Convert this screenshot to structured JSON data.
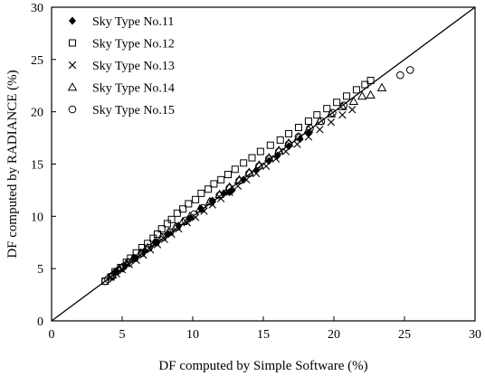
{
  "chart_data": {
    "type": "scatter",
    "xlabel": "DF computed by Simple Software (%)",
    "ylabel": "DF computed by RADIANCE (%)",
    "xlim": [
      0,
      30
    ],
    "ylim": [
      0,
      30
    ],
    "xticks": [
      "0",
      "5",
      "10",
      "15",
      "20",
      "25",
      "30"
    ],
    "yticks": [
      "0",
      "5",
      "10",
      "15",
      "20",
      "25",
      "30"
    ],
    "grid": false,
    "legend_position": "top-left",
    "reference_line": {
      "from": [
        0,
        0
      ],
      "to": [
        30,
        30
      ]
    },
    "series": [
      {
        "name": "Sky Type No.11",
        "marker": "filled-diamond",
        "points": [
          [
            4.5,
            4.7
          ],
          [
            5.2,
            5.3
          ],
          [
            5.9,
            6.0
          ],
          [
            6.6,
            6.7
          ],
          [
            7.4,
            7.5
          ],
          [
            8.2,
            8.3
          ],
          [
            9.0,
            9.1
          ],
          [
            9.8,
            9.8
          ],
          [
            10.6,
            10.7
          ],
          [
            11.4,
            11.5
          ],
          [
            12.2,
            12.2
          ],
          [
            12.6,
            12.3
          ],
          [
            12.8,
            12.5
          ],
          [
            13.6,
            13.5
          ],
          [
            14.5,
            14.4
          ],
          [
            15.4,
            15.3
          ],
          [
            16.0,
            15.8
          ],
          [
            16.8,
            16.7
          ],
          [
            17.6,
            17.4
          ],
          [
            18.2,
            18.0
          ]
        ]
      },
      {
        "name": "Sky Type No.12",
        "marker": "open-square",
        "points": [
          [
            3.8,
            3.8
          ],
          [
            4.2,
            4.2
          ],
          [
            4.5,
            4.7
          ],
          [
            4.9,
            5.1
          ],
          [
            5.3,
            5.6
          ],
          [
            5.6,
            6.0
          ],
          [
            6.0,
            6.5
          ],
          [
            6.4,
            7.0
          ],
          [
            6.8,
            7.4
          ],
          [
            7.2,
            7.9
          ],
          [
            7.5,
            8.3
          ],
          [
            7.8,
            8.8
          ],
          [
            8.2,
            9.3
          ],
          [
            8.5,
            9.7
          ],
          [
            8.9,
            10.3
          ],
          [
            9.3,
            10.7
          ],
          [
            9.7,
            11.2
          ],
          [
            10.2,
            11.6
          ],
          [
            10.6,
            12.2
          ],
          [
            11.1,
            12.6
          ],
          [
            11.5,
            13.1
          ],
          [
            12.0,
            13.5
          ],
          [
            12.5,
            14.0
          ],
          [
            13.0,
            14.5
          ],
          [
            13.6,
            15.1
          ],
          [
            14.2,
            15.6
          ],
          [
            14.8,
            16.2
          ],
          [
            15.5,
            16.8
          ],
          [
            16.2,
            17.3
          ],
          [
            16.8,
            17.9
          ],
          [
            17.5,
            18.5
          ],
          [
            18.2,
            19.1
          ],
          [
            18.8,
            19.7
          ],
          [
            19.5,
            20.3
          ],
          [
            20.2,
            20.9
          ],
          [
            20.9,
            21.5
          ],
          [
            21.6,
            22.1
          ],
          [
            22.2,
            22.6
          ],
          [
            22.6,
            23.0
          ]
        ]
      },
      {
        "name": "Sky Type No.13",
        "marker": "x",
        "points": [
          [
            4.2,
            4.2
          ],
          [
            4.6,
            4.5
          ],
          [
            5.0,
            4.9
          ],
          [
            5.5,
            5.4
          ],
          [
            6.0,
            5.8
          ],
          [
            6.5,
            6.3
          ],
          [
            7.0,
            6.8
          ],
          [
            7.5,
            7.3
          ],
          [
            8.0,
            7.8
          ],
          [
            8.5,
            8.3
          ],
          [
            9.0,
            8.8
          ],
          [
            9.6,
            9.4
          ],
          [
            10.2,
            9.9
          ],
          [
            10.8,
            10.5
          ],
          [
            11.4,
            11.1
          ],
          [
            12.0,
            11.7
          ],
          [
            12.6,
            12.3
          ],
          [
            13.2,
            12.9
          ],
          [
            13.8,
            13.5
          ],
          [
            14.5,
            14.1
          ],
          [
            15.2,
            14.8
          ],
          [
            15.9,
            15.5
          ],
          [
            16.6,
            16.2
          ],
          [
            17.4,
            16.9
          ],
          [
            18.2,
            17.6
          ],
          [
            19.0,
            18.3
          ],
          [
            19.8,
            19.0
          ],
          [
            20.6,
            19.7
          ],
          [
            21.3,
            20.2
          ]
        ]
      },
      {
        "name": "Sky Type No.14",
        "marker": "open-triangle",
        "points": [
          [
            4.3,
            4.4
          ],
          [
            4.8,
            5.0
          ],
          [
            5.3,
            5.5
          ],
          [
            5.8,
            6.0
          ],
          [
            6.3,
            6.5
          ],
          [
            6.8,
            7.0
          ],
          [
            7.3,
            7.5
          ],
          [
            7.8,
            8.0
          ],
          [
            8.3,
            8.5
          ],
          [
            8.8,
            9.0
          ],
          [
            9.3,
            9.5
          ],
          [
            9.8,
            10.0
          ],
          [
            10.5,
            10.7
          ],
          [
            11.2,
            11.4
          ],
          [
            11.9,
            12.1
          ],
          [
            12.6,
            12.8
          ],
          [
            13.3,
            13.5
          ],
          [
            14.0,
            14.2
          ],
          [
            14.7,
            14.9
          ],
          [
            15.4,
            15.6
          ],
          [
            16.1,
            16.3
          ],
          [
            16.8,
            17.0
          ],
          [
            17.5,
            17.6
          ],
          [
            18.2,
            18.3
          ],
          [
            19.0,
            19.1
          ],
          [
            19.8,
            19.8
          ],
          [
            20.6,
            20.5
          ],
          [
            21.4,
            21.0
          ],
          [
            22.0,
            21.5
          ],
          [
            22.6,
            21.6
          ],
          [
            23.4,
            22.3
          ]
        ]
      },
      {
        "name": "Sky Type No.15",
        "marker": "open-circle",
        "points": [
          [
            3.8,
            3.8
          ],
          [
            4.0,
            4.0
          ],
          [
            4.3,
            4.3
          ],
          [
            4.7,
            4.8
          ],
          [
            5.1,
            5.2
          ],
          [
            5.5,
            5.6
          ],
          [
            5.9,
            6.0
          ],
          [
            6.4,
            6.5
          ],
          [
            6.9,
            7.0
          ],
          [
            7.4,
            7.5
          ],
          [
            7.9,
            8.0
          ],
          [
            8.4,
            8.5
          ],
          [
            8.9,
            9.0
          ],
          [
            9.5,
            9.6
          ],
          [
            10.1,
            10.2
          ],
          [
            10.7,
            10.8
          ],
          [
            11.3,
            11.4
          ],
          [
            11.9,
            12.0
          ],
          [
            12.6,
            12.7
          ],
          [
            13.3,
            13.4
          ],
          [
            14.0,
            14.1
          ],
          [
            14.7,
            14.8
          ],
          [
            15.4,
            15.5
          ],
          [
            16.1,
            16.2
          ],
          [
            16.8,
            16.9
          ],
          [
            17.5,
            17.6
          ],
          [
            18.3,
            18.4
          ],
          [
            19.1,
            19.1
          ],
          [
            19.9,
            19.9
          ],
          [
            20.7,
            20.6
          ],
          [
            24.7,
            23.5
          ],
          [
            25.4,
            24.0
          ]
        ]
      }
    ]
  }
}
